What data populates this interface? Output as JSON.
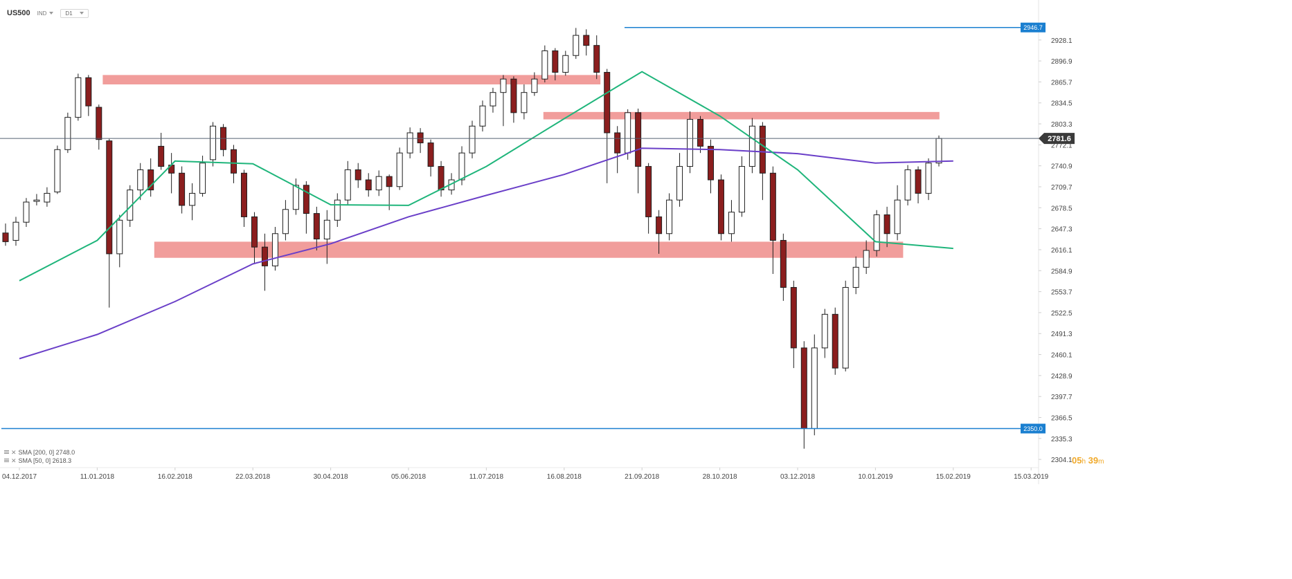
{
  "header": {
    "symbol": "US500",
    "market": "IND",
    "timeframe": "D1"
  },
  "legend": [
    {
      "label": "SMA [200, 0] 2748.0",
      "color": "#6a3fc8"
    },
    {
      "label": "SMA [50, 0] 2618.3",
      "color": "#1fb57b"
    }
  ],
  "timer": {
    "hours": "05",
    "h_unit": "h",
    "minutes": "39",
    "m_unit": "m"
  },
  "chart_data": {
    "type": "candlestick",
    "title": "",
    "xlabel": "",
    "ylabel": "",
    "ylim": [
      2296,
      2967
    ],
    "y_ticks": [
      "2928.1",
      "2896.9",
      "2865.7",
      "2834.5",
      "2803.3",
      "2772.1",
      "2740.9",
      "2709.7",
      "2678.5",
      "2647.3",
      "2616.1",
      "2584.9",
      "2553.7",
      "2522.5",
      "2491.3",
      "2460.1",
      "2428.9",
      "2397.7",
      "2366.5",
      "2335.3",
      "2304.1"
    ],
    "x_ticks": [
      "04.12.2017",
      "11.01.2018",
      "16.02.2018",
      "22.03.2018",
      "30.04.2018",
      "05.06.2018",
      "11.07.2018",
      "16.08.2018",
      "21.09.2018",
      "28.10.2018",
      "03.12.2018",
      "10.01.2019",
      "15.02.2019",
      "15.03.2019"
    ],
    "current_price": {
      "value": 2781.6,
      "label": "2781.6",
      "color": "#3a3a3a"
    },
    "level_lines": [
      {
        "value": 2946.7,
        "label": "2946.7",
        "color": "#1a7fd0"
      },
      {
        "value": 2350.0,
        "label": "2350.0",
        "color": "#1a7fd0"
      }
    ],
    "zones": [
      {
        "from": "11.01.2018",
        "to": "21.09.2018",
        "low": 2862,
        "high": 2876,
        "color": "#ef8c8a"
      },
      {
        "from": "16.08.2018",
        "to": "15.02.2019",
        "low": 2810,
        "high": 2821,
        "color": "#ef8c8a"
      },
      {
        "from": "16.02.2018",
        "to": "10.01.2019",
        "low": 2604,
        "high": 2628,
        "color": "#ef8c8a"
      }
    ],
    "series": [
      {
        "name": "SMA 200",
        "color": "#6a3fc8",
        "points": [
          [
            "04.12.2017",
            2454
          ],
          [
            "11.01.2018",
            2490
          ],
          [
            "16.02.2018",
            2539
          ],
          [
            "22.03.2018",
            2595
          ],
          [
            "30.04.2018",
            2625
          ],
          [
            "05.06.2018",
            2665
          ],
          [
            "11.07.2018",
            2697
          ],
          [
            "16.08.2018",
            2728
          ],
          [
            "21.09.2018",
            2767
          ],
          [
            "28.10.2018",
            2765
          ],
          [
            "03.12.2018",
            2759
          ],
          [
            "10.01.2019",
            2745
          ],
          [
            "15.02.2019",
            2748
          ]
        ]
      },
      {
        "name": "SMA 50",
        "color": "#1fb57b",
        "points": [
          [
            "04.12.2017",
            2570
          ],
          [
            "11.01.2018",
            2630
          ],
          [
            "16.02.2018",
            2748
          ],
          [
            "22.03.2018",
            2744
          ],
          [
            "30.04.2018",
            2683
          ],
          [
            "05.06.2018",
            2682
          ],
          [
            "11.07.2018",
            2740
          ],
          [
            "16.08.2018",
            2811
          ],
          [
            "21.09.2018",
            2881
          ],
          [
            "28.10.2018",
            2815
          ],
          [
            "03.12.2018",
            2735
          ],
          [
            "10.01.2019",
            2628
          ],
          [
            "15.02.2019",
            2618
          ]
        ]
      }
    ],
    "candles": [
      [
        "04.12.2017",
        2641,
        2628,
        2655,
        2622
      ],
      [
        "11.12.2017",
        2630,
        2657,
        2665,
        2622
      ],
      [
        "18.12.2017",
        2657,
        2687,
        2693,
        2650
      ],
      [
        "25.12.2017",
        2688,
        2690,
        2699,
        2682
      ],
      [
        "01.01.2018",
        2687,
        2700,
        2709,
        2680
      ],
      [
        "08.01.2018",
        2702,
        2765,
        2771,
        2699
      ],
      [
        "15.01.2018",
        2765,
        2813,
        2820,
        2760
      ],
      [
        "22.01.2018",
        2813,
        2872,
        2878,
        2808
      ],
      [
        "29.01.2018",
        2872,
        2830,
        2876,
        2815
      ],
      [
        "05.02.2018",
        2828,
        2780,
        2832,
        2765
      ],
      [
        "12.02.2018",
        2778,
        2610,
        2781,
        2530
      ],
      [
        "19.02.2018",
        2610,
        2660,
        2668,
        2590
      ],
      [
        "26.02.2018",
        2660,
        2705,
        2712,
        2650
      ],
      [
        "05.03.2018",
        2705,
        2735,
        2745,
        2690
      ],
      [
        "12.03.2018",
        2735,
        2705,
        2752,
        2695
      ],
      [
        "19.03.2018",
        2770,
        2740,
        2790,
        2735
      ],
      [
        "26.03.2018",
        2742,
        2730,
        2760,
        2700
      ],
      [
        "02.04.2018",
        2730,
        2682,
        2740,
        2670
      ],
      [
        "09.04.2018",
        2682,
        2700,
        2715,
        2660
      ],
      [
        "16.04.2018",
        2700,
        2745,
        2756,
        2695
      ],
      [
        "23.04.2018",
        2750,
        2800,
        2806,
        2740
      ],
      [
        "30.04.2018",
        2798,
        2765,
        2803,
        2755
      ],
      [
        "07.05.2018",
        2765,
        2730,
        2772,
        2715
      ],
      [
        "14.05.2018",
        2730,
        2665,
        2735,
        2650
      ],
      [
        "21.05.2018",
        2665,
        2620,
        2672,
        2595
      ],
      [
        "28.05.2018",
        2620,
        2592,
        2640,
        2555
      ],
      [
        "04.06.2018",
        2592,
        2640,
        2650,
        2585
      ],
      [
        "11.06.2018",
        2640,
        2676,
        2690,
        2630
      ],
      [
        "18.06.2018",
        2676,
        2712,
        2722,
        2668
      ],
      [
        "25.06.2018",
        2712,
        2670,
        2718,
        2640
      ],
      [
        "02.07.2018",
        2670,
        2632,
        2680,
        2615
      ],
      [
        "09.07.2018",
        2632,
        2660,
        2675,
        2595
      ],
      [
        "16.07.2018",
        2660,
        2690,
        2700,
        2650
      ],
      [
        "23.07.2018",
        2690,
        2735,
        2748,
        2682
      ],
      [
        "30.07.2018",
        2735,
        2720,
        2745,
        2708
      ],
      [
        "06.08.2018",
        2720,
        2705,
        2730,
        2695
      ],
      [
        "13.08.2018",
        2705,
        2725,
        2734,
        2696
      ],
      [
        "20.08.2018",
        2725,
        2710,
        2728,
        2675
      ],
      [
        "27.08.2018",
        2710,
        2760,
        2768,
        2705
      ],
      [
        "03.09.2018",
        2760,
        2790,
        2798,
        2752
      ],
      [
        "10.09.2018",
        2790,
        2775,
        2797,
        2760
      ],
      [
        "17.09.2018",
        2775,
        2740,
        2780,
        2725
      ],
      [
        "24.09.2018",
        2740,
        2705,
        2748,
        2695
      ],
      [
        "01.10.2018",
        2705,
        2720,
        2730,
        2698
      ],
      [
        "08.10.2018",
        2720,
        2760,
        2770,
        2712
      ],
      [
        "15.10.2018",
        2760,
        2800,
        2808,
        2752
      ],
      [
        "22.10.2018",
        2800,
        2830,
        2838,
        2792
      ],
      [
        "29.10.2018",
        2830,
        2850,
        2857,
        2820
      ],
      [
        "05.11.2018",
        2850,
        2870,
        2876,
        2800
      ],
      [
        "12.11.2018",
        2870,
        2820,
        2874,
        2805
      ],
      [
        "19.11.2018",
        2820,
        2850,
        2862,
        2810
      ],
      [
        "26.11.2018",
        2850,
        2870,
        2880,
        2845
      ],
      [
        "03.12.2018",
        2870,
        2912,
        2920,
        2865
      ],
      [
        "10.12.2018",
        2912,
        2880,
        2916,
        2868
      ],
      [
        "17.12.2018",
        2880,
        2905,
        2912,
        2875
      ],
      [
        "24.12.2018",
        2905,
        2935,
        2946,
        2900
      ],
      [
        "31.12.2018",
        2935,
        2920,
        2944,
        2905
      ],
      [
        "07.01.2019",
        2920,
        2880,
        2935,
        2870
      ],
      [
        "14.01.2019",
        2880,
        2790,
        2885,
        2715
      ],
      [
        "21.01.2019",
        2790,
        2760,
        2800,
        2730
      ],
      [
        "28.01.2019",
        2760,
        2820,
        2825,
        2750
      ],
      [
        "04.02.2019",
        2820,
        2740,
        2826,
        2700
      ],
      [
        "11.02.2019",
        2740,
        2665,
        2745,
        2640
      ],
      [
        "18.02.2019",
        2665,
        2640,
        2675,
        2610
      ],
      [
        "25.02.2019",
        2640,
        2690,
        2700,
        2630
      ],
      [
        "04.03.2019",
        2690,
        2740,
        2760,
        2680
      ],
      [
        "11.03.2019",
        2740,
        2810,
        2822,
        2730
      ],
      [
        "18.03.2019",
        2810,
        2770,
        2815,
        2760
      ],
      [
        "25.03.2019",
        2770,
        2720,
        2780,
        2700
      ],
      [
        "01.04.2019",
        2720,
        2640,
        2728,
        2630
      ],
      [
        "08.04.2019",
        2640,
        2672,
        2690,
        2628
      ],
      [
        "15.04.2019",
        2672,
        2740,
        2755,
        2665
      ],
      [
        "22.04.2019",
        2740,
        2800,
        2812,
        2730
      ],
      [
        "29.04.2019",
        2800,
        2730,
        2806,
        2690
      ],
      [
        "06.05.2019",
        2730,
        2630,
        2740,
        2580
      ],
      [
        "13.05.2019",
        2630,
        2560,
        2640,
        2540
      ],
      [
        "20.05.2019",
        2560,
        2470,
        2570,
        2440
      ],
      [
        "27.05.2019",
        2470,
        2350,
        2480,
        2320
      ],
      [
        "03.06.2019",
        2350,
        2470,
        2490,
        2340
      ],
      [
        "10.06.2019",
        2470,
        2520,
        2528,
        2455
      ],
      [
        "17.06.2019",
        2520,
        2440,
        2530,
        2430
      ],
      [
        "24.06.2019",
        2440,
        2560,
        2570,
        2435
      ],
      [
        "01.07.2019",
        2560,
        2590,
        2606,
        2550
      ],
      [
        "08.07.2019",
        2590,
        2615,
        2630,
        2580
      ],
      [
        "15.07.2019",
        2615,
        2668,
        2675,
        2606
      ],
      [
        "22.07.2019",
        2668,
        2640,
        2680,
        2620
      ],
      [
        "29.07.2019",
        2640,
        2690,
        2712,
        2630
      ],
      [
        "05.08.2019",
        2690,
        2735,
        2742,
        2682
      ],
      [
        "12.08.2019",
        2735,
        2700,
        2740,
        2685
      ],
      [
        "19.08.2019",
        2700,
        2745,
        2752,
        2690
      ],
      [
        "26.08.2019",
        2745,
        2781.6,
        2786,
        2740
      ]
    ]
  }
}
